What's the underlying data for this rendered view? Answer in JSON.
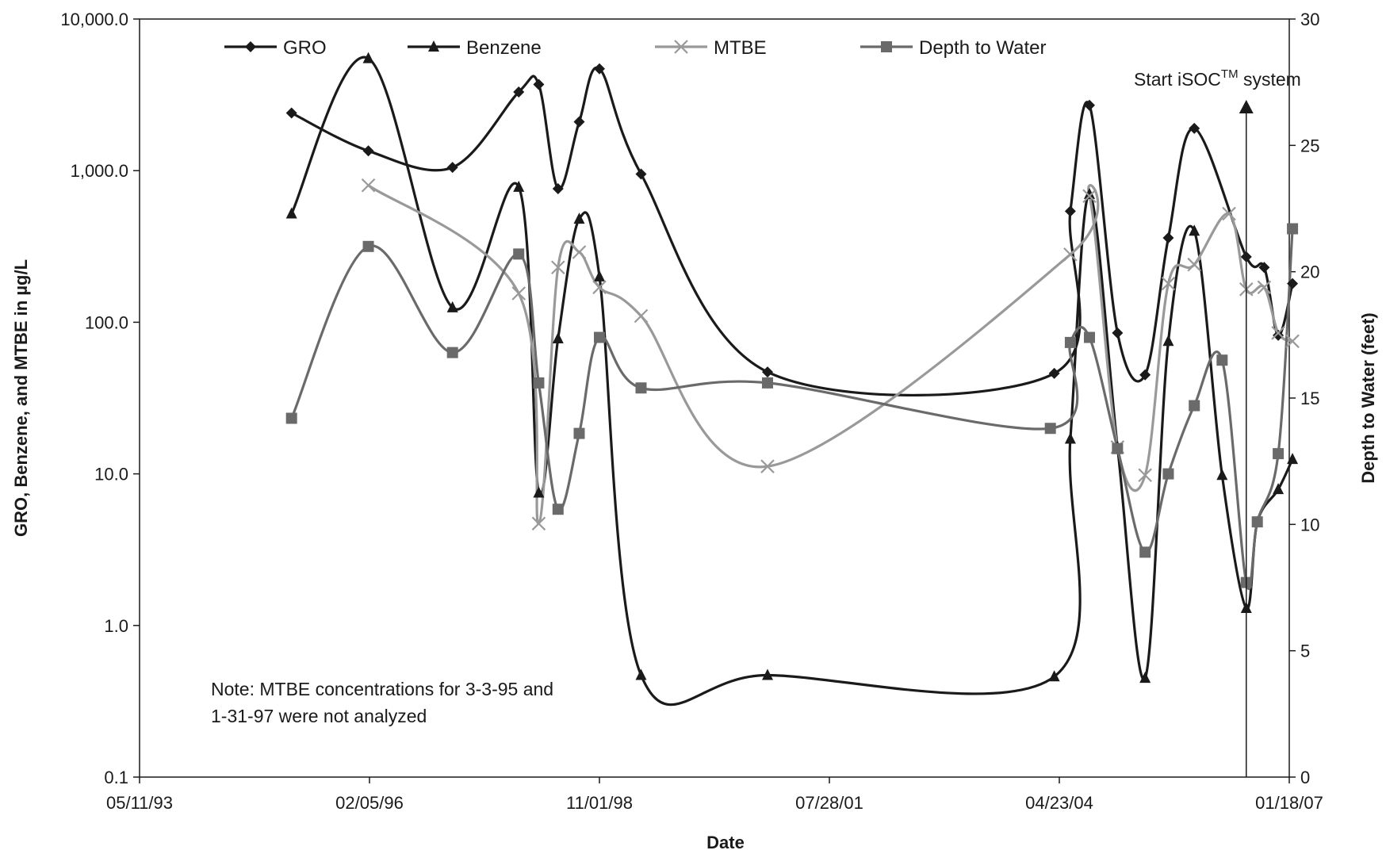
{
  "chart_data": {
    "type": "line",
    "xlabel": "Date",
    "ylabel": "GRO, Benzene, and MTBE in µg/L",
    "y2label": "Depth to Water (feet)",
    "yscale": "log",
    "ylim": [
      0.1,
      10000
    ],
    "y2lim": [
      0,
      30
    ],
    "xlim": [
      "1993-05-11",
      "2007-01-18"
    ],
    "x_ticks": [
      "05/11/93",
      "02/05/96",
      "11/01/98",
      "07/28/01",
      "04/23/04",
      "01/18/07"
    ],
    "y_ticks": [
      "0.1",
      "1.0",
      "10.0",
      "100.0",
      "1,000.0",
      "10,000.0"
    ],
    "y2_ticks": [
      "0",
      "5",
      "10",
      "15",
      "20",
      "25",
      "30"
    ],
    "legend_position": "top",
    "series": [
      {
        "name": "GRO",
        "axis": "left",
        "marker": "diamond",
        "color": "#1a1a1a",
        "points": [
          [
            "1995-03-03",
            2400
          ],
          [
            "1996-01-31",
            1350
          ],
          [
            "1997-01-31",
            1050
          ],
          [
            "1997-11-15",
            3300
          ],
          [
            "1998-02-10",
            3700
          ],
          [
            "1998-05-05",
            760
          ],
          [
            "1998-08-05",
            2100
          ],
          [
            "1998-11-01",
            4700
          ],
          [
            "1999-05-01",
            950
          ],
          [
            "2000-11-01",
            47
          ],
          [
            "2004-04-01",
            46
          ],
          [
            "2004-06-10",
            540
          ],
          [
            "2004-09-01",
            2700
          ],
          [
            "2005-01-01",
            85
          ],
          [
            "2005-05-01",
            45
          ],
          [
            "2005-08-10",
            360
          ],
          [
            "2005-12-01",
            1900
          ],
          [
            "2006-07-15",
            270
          ],
          [
            "2006-10-01",
            230
          ],
          [
            "2006-12-01",
            82
          ],
          [
            "2007-02-01",
            180
          ]
        ]
      },
      {
        "name": "Benzene",
        "axis": "left",
        "marker": "triangle",
        "color": "#1a1a1a",
        "points": [
          [
            "1995-03-03",
            520
          ],
          [
            "1996-01-31",
            5500
          ],
          [
            "1997-01-31",
            125
          ],
          [
            "1997-11-15",
            780
          ],
          [
            "1998-02-10",
            7.5
          ],
          [
            "1998-05-05",
            78
          ],
          [
            "1998-08-05",
            480
          ],
          [
            "1998-11-01",
            200
          ],
          [
            "1999-05-01",
            0.47
          ],
          [
            "2000-11-01",
            0.47
          ],
          [
            "2004-04-01",
            0.46
          ],
          [
            "2004-06-10",
            17
          ],
          [
            "2004-09-01",
            700
          ],
          [
            "2005-01-01",
            15
          ],
          [
            "2005-05-01",
            0.45
          ],
          [
            "2005-08-10",
            75
          ],
          [
            "2005-12-01",
            400
          ],
          [
            "2006-04-01",
            9.8
          ],
          [
            "2006-07-15",
            1.3
          ],
          [
            "2006-09-01",
            4.8
          ],
          [
            "2006-12-01",
            7.9
          ],
          [
            "2007-02-01",
            12.5
          ]
        ]
      },
      {
        "name": "MTBE",
        "axis": "left",
        "marker": "x",
        "color": "#999999",
        "points": [
          [
            "1996-01-31",
            800
          ],
          [
            "1997-11-15",
            155
          ],
          [
            "1998-02-10",
            4.7
          ],
          [
            "1998-05-05",
            230
          ],
          [
            "1998-08-05",
            290
          ],
          [
            "1998-11-01",
            170
          ],
          [
            "1999-05-01",
            110
          ],
          [
            "2000-11-01",
            11.2
          ],
          [
            "2004-06-10",
            280
          ],
          [
            "2004-09-01",
            680
          ],
          [
            "2005-01-01",
            15
          ],
          [
            "2005-05-01",
            9.8
          ],
          [
            "2005-08-10",
            180
          ],
          [
            "2005-12-01",
            240
          ],
          [
            "2006-05-01",
            520
          ],
          [
            "2006-07-15",
            165
          ],
          [
            "2006-10-01",
            170
          ],
          [
            "2006-12-01",
            85
          ],
          [
            "2007-02-01",
            75
          ]
        ]
      },
      {
        "name": "Depth to Water",
        "axis": "right",
        "marker": "square",
        "color": "#6a6a6a",
        "points": [
          [
            "1995-03-03",
            14.2
          ],
          [
            "1996-01-31",
            21
          ],
          [
            "1997-01-31",
            16.8
          ],
          [
            "1997-11-15",
            20.7
          ],
          [
            "1998-02-10",
            15.6
          ],
          [
            "1998-05-05",
            10.6
          ],
          [
            "1998-08-05",
            13.6
          ],
          [
            "1998-11-01",
            17.4
          ],
          [
            "1999-05-01",
            15.4
          ],
          [
            "2000-11-01",
            15.6
          ],
          [
            "2004-03-15",
            13.8
          ],
          [
            "2004-06-10",
            17.2
          ],
          [
            "2004-09-01",
            17.4
          ],
          [
            "2005-01-01",
            13
          ],
          [
            "2005-05-01",
            8.9
          ],
          [
            "2005-08-10",
            12
          ],
          [
            "2005-12-01",
            14.7
          ],
          [
            "2006-04-01",
            16.5
          ],
          [
            "2006-07-15",
            7.7
          ],
          [
            "2006-09-01",
            10.1
          ],
          [
            "2006-12-01",
            12.8
          ],
          [
            "2007-02-01",
            21.7
          ]
        ]
      }
    ],
    "annotations": [
      {
        "text": "Note: MTBE concentrations for 3-3-95 and",
        "line": 1
      },
      {
        "text": "1-31-97 were not analyzed",
        "line": 2
      }
    ],
    "event_marker": {
      "date": "2006-07-15",
      "label_prefix": "Start iSOC",
      "label_sup": "TM",
      "label_suffix": " system"
    }
  }
}
